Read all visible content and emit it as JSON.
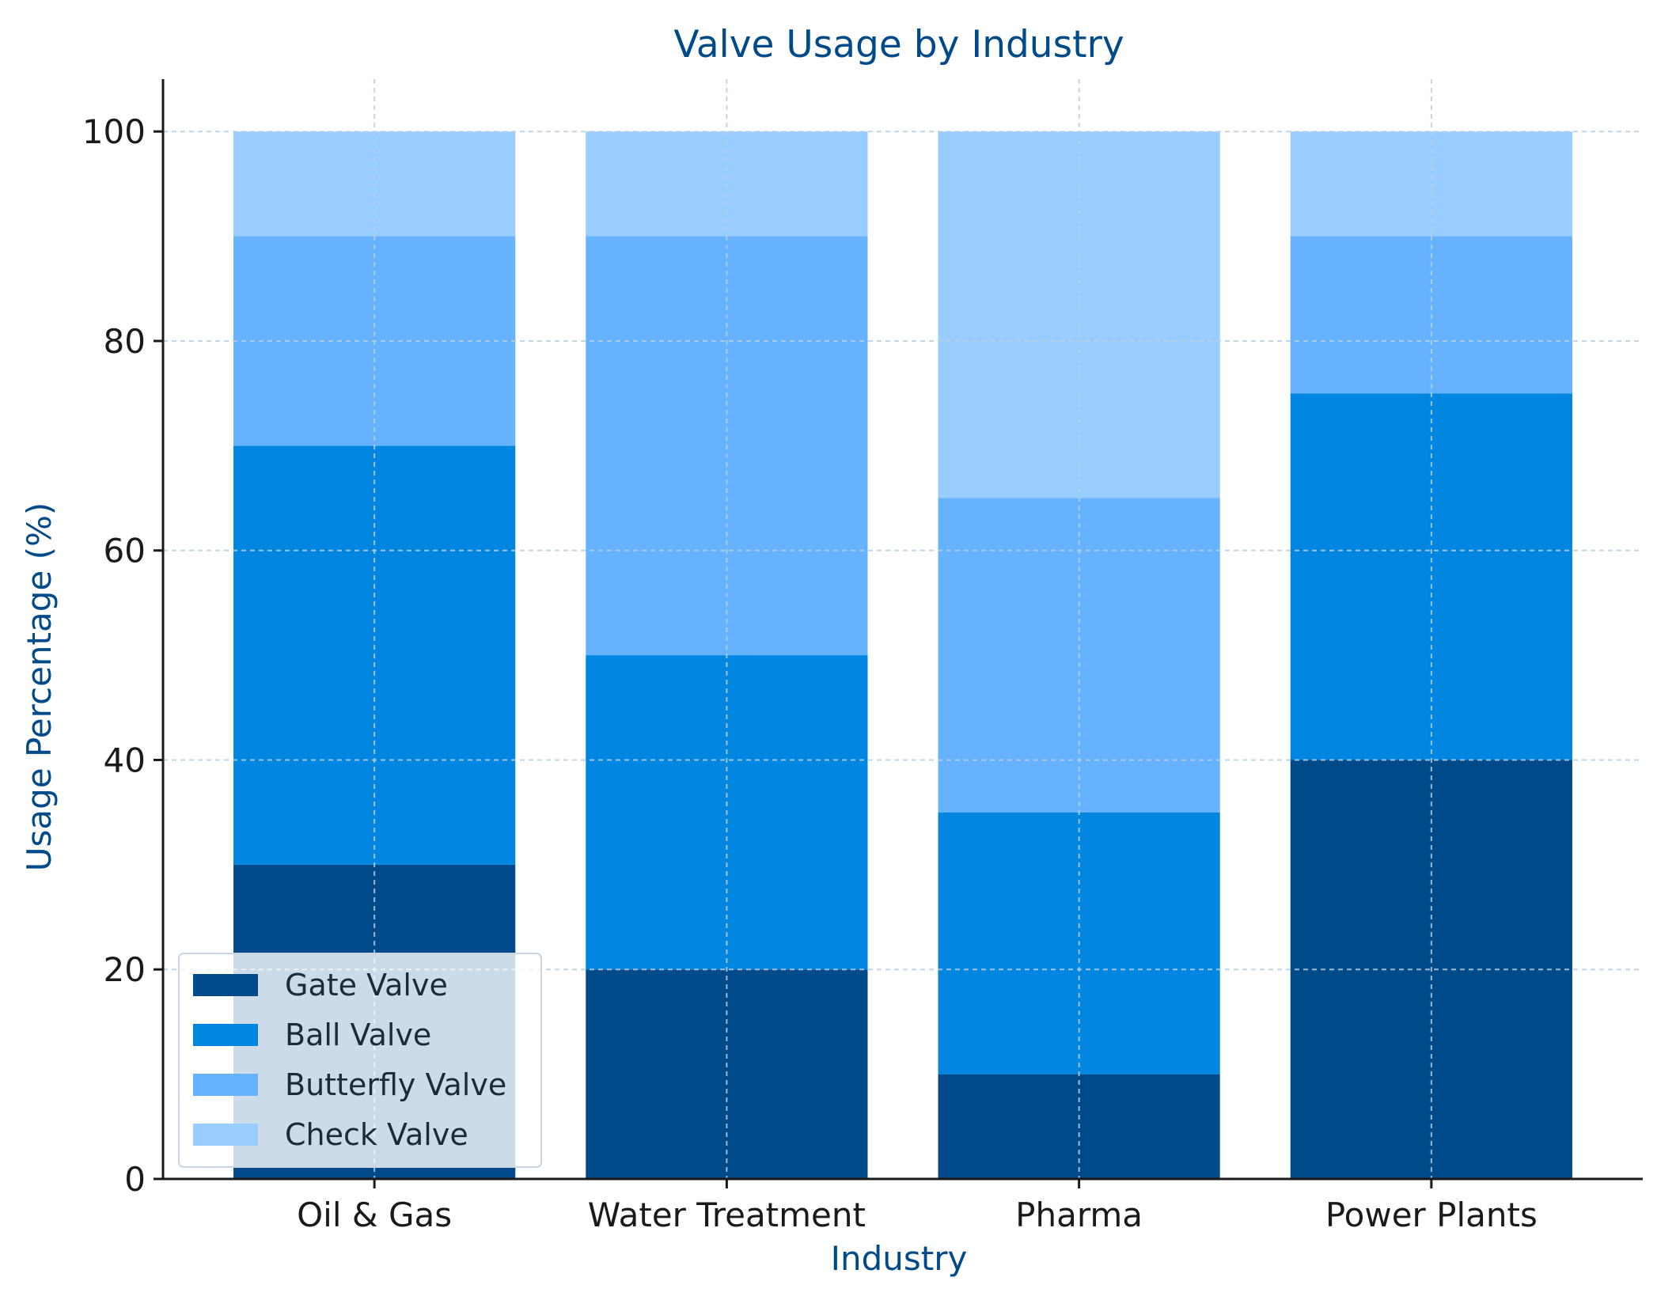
{
  "chart_data": {
    "type": "bar",
    "stacked": true,
    "title": "Valve Usage by Industry",
    "xlabel": "Industry",
    "ylabel": "Usage Percentage (%)",
    "categories": [
      "Oil & Gas",
      "Water Treatment",
      "Pharma",
      "Power Plants"
    ],
    "series": [
      {
        "name": "Gate Valve",
        "values": [
          30,
          20,
          10,
          40
        ],
        "color": "#004a8a"
      },
      {
        "name": "Ball Valve",
        "values": [
          40,
          30,
          25,
          35
        ],
        "color": "#0086e0"
      },
      {
        "name": "Butterfly Valve",
        "values": [
          20,
          40,
          30,
          15
        ],
        "color": "#66b2ff"
      },
      {
        "name": "Check Valve",
        "values": [
          10,
          10,
          35,
          10
        ],
        "color": "#99ccff"
      }
    ],
    "ylim": [
      0,
      105
    ],
    "yticks": [
      0,
      20,
      40,
      60,
      80,
      100
    ],
    "grid": true,
    "legend_position": "lower-left",
    "colors": {
      "title": "#004a8a",
      "axis_label": "#004a8a",
      "grid": "#b8cfe0",
      "axis": "#1a1a1a"
    }
  }
}
